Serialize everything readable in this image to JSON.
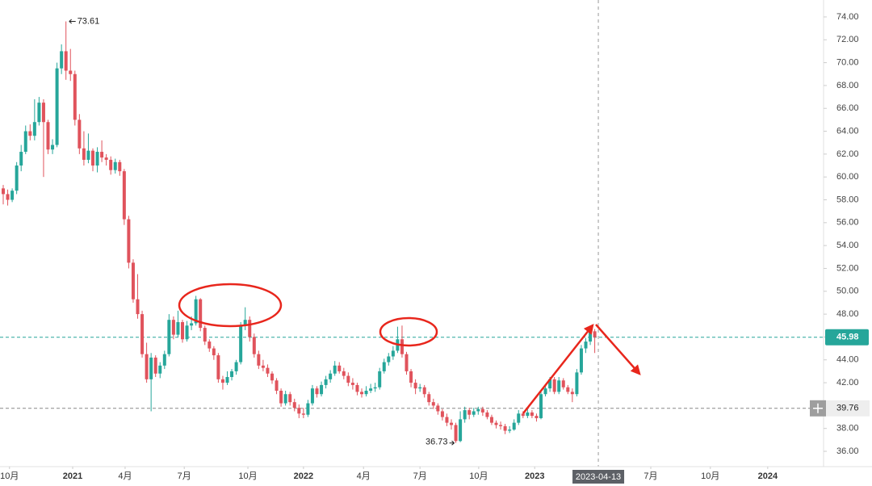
{
  "chart_data": {
    "type": "candlestick",
    "up_color": "#26a69a",
    "down_color": "#e0535c",
    "xlim": [
      -0.72,
      183.06
    ],
    "ylim": [
      34.66,
      75.48
    ],
    "yticks": [
      {
        "value": 36,
        "label": "36.00"
      },
      {
        "value": 38,
        "label": "38.00"
      },
      {
        "value": 40,
        "label": "40.00"
      },
      {
        "value": 42,
        "label": "42.00"
      },
      {
        "value": 44,
        "label": "44.00"
      },
      {
        "value": 46,
        "label": "46.00"
      },
      {
        "value": 48,
        "label": "48.00"
      },
      {
        "value": 50,
        "label": "50.00"
      },
      {
        "value": 52,
        "label": "52.00"
      },
      {
        "value": 54,
        "label": "54.00"
      },
      {
        "value": 56,
        "label": "56.00"
      },
      {
        "value": 58,
        "label": "58.00"
      },
      {
        "value": 60,
        "label": "60.00"
      },
      {
        "value": 62,
        "label": "62.00"
      },
      {
        "value": 64,
        "label": "64.00"
      },
      {
        "value": 66,
        "label": "66.00"
      },
      {
        "value": 68,
        "label": "68.00"
      },
      {
        "value": 70,
        "label": "70.00"
      },
      {
        "value": 72,
        "label": "72.00"
      },
      {
        "value": 74,
        "label": "74.00"
      }
    ],
    "xticks": [
      {
        "value": 1.4,
        "label": "10月"
      },
      {
        "value": 15.5,
        "label": "2021"
      },
      {
        "value": 27.2,
        "label": "4月"
      },
      {
        "value": 40.4,
        "label": "7月"
      },
      {
        "value": 54.6,
        "label": "10月"
      },
      {
        "value": 67,
        "label": "2022"
      },
      {
        "value": 80.4,
        "label": "4月"
      },
      {
        "value": 93,
        "label": "7月"
      },
      {
        "value": 106.1,
        "label": "10月"
      },
      {
        "value": 118.6,
        "label": "2023"
      },
      {
        "value": 144.5,
        "label": "7月"
      },
      {
        "value": 157.8,
        "label": "10月"
      },
      {
        "value": 170.6,
        "label": "2024"
      }
    ],
    "crosshair": {
      "value": 132.8,
      "label": "2023-04-13"
    },
    "price_lines": [
      {
        "value": 45.98,
        "color": "#26a69a"
      },
      {
        "value": 39.76,
        "color": "#888888"
      }
    ],
    "candles": [
      [
        59.0,
        59.3,
        57.6,
        58.5
      ],
      [
        58.5,
        58.9,
        57.5,
        58.0
      ],
      [
        58.0,
        59.0,
        57.8,
        58.8
      ],
      [
        58.8,
        61.3,
        58.5,
        61.0
      ],
      [
        61.0,
        62.8,
        60.5,
        62.2
      ],
      [
        62.2,
        64.5,
        62.0,
        64.0
      ],
      [
        64.0,
        64.6,
        63.2,
        63.6
      ],
      [
        63.6,
        66.8,
        63.2,
        64.8
      ],
      [
        64.8,
        67.0,
        64.5,
        66.5
      ],
      [
        66.5,
        66.8,
        60.0,
        64.8
      ],
      [
        64.8,
        65.0,
        62.0,
        62.4
      ],
      [
        62.4,
        63.3,
        62.0,
        62.8
      ],
      [
        62.8,
        70.0,
        62.6,
        69.5
      ],
      [
        69.5,
        71.6,
        69.0,
        71.0
      ],
      [
        71.0,
        73.61,
        68.5,
        69.3
      ],
      [
        69.3,
        71.2,
        68.4,
        69.0
      ],
      [
        69.0,
        69.3,
        64.5,
        65.0
      ],
      [
        65.0,
        65.5,
        62.0,
        62.5
      ],
      [
        62.5,
        64.0,
        61.0,
        61.5
      ],
      [
        61.5,
        63.8,
        61.2,
        62.3
      ],
      [
        62.3,
        62.5,
        60.5,
        61.0
      ],
      [
        61.0,
        62.6,
        60.4,
        62.2
      ],
      [
        62.2,
        63.2,
        61.3,
        61.7
      ],
      [
        61.7,
        62.0,
        61.0,
        61.5
      ],
      [
        61.5,
        61.8,
        60.2,
        60.6
      ],
      [
        60.6,
        61.6,
        60.3,
        61.3
      ],
      [
        61.3,
        61.5,
        60.1,
        60.5
      ],
      [
        60.5,
        60.7,
        55.8,
        56.3
      ],
      [
        56.3,
        56.6,
        52.0,
        52.5
      ],
      [
        52.5,
        52.8,
        49.0,
        49.3
      ],
      [
        49.3,
        51.5,
        47.6,
        48.0
      ],
      [
        48.0,
        48.3,
        44.2,
        44.5
      ],
      [
        44.5,
        45.5,
        42.0,
        42.3
      ],
      [
        42.3,
        44.6,
        39.5,
        44.2
      ],
      [
        44.2,
        44.4,
        42.5,
        42.8
      ],
      [
        42.8,
        43.8,
        42.4,
        43.5
      ],
      [
        43.5,
        44.8,
        43.2,
        44.5
      ],
      [
        44.5,
        48.0,
        44.3,
        47.5
      ],
      [
        47.5,
        47.8,
        45.8,
        46.2
      ],
      [
        46.2,
        48.3,
        46.0,
        47.3
      ],
      [
        47.3,
        47.5,
        45.5,
        45.8
      ],
      [
        45.8,
        47.4,
        45.6,
        47.0
      ],
      [
        47.0,
        47.8,
        46.6,
        47.2
      ],
      [
        47.2,
        49.6,
        47.0,
        49.3
      ],
      [
        49.3,
        49.4,
        46.5,
        46.8
      ],
      [
        46.8,
        47.0,
        45.3,
        45.6
      ],
      [
        45.6,
        45.8,
        44.7,
        45.0
      ],
      [
        45.0,
        45.2,
        44.0,
        44.4
      ],
      [
        44.4,
        44.6,
        42.0,
        42.3
      ],
      [
        42.3,
        42.6,
        41.4,
        42.0
      ],
      [
        42.0,
        43.0,
        41.8,
        42.5
      ],
      [
        42.5,
        43.2,
        42.2,
        43.0
      ],
      [
        43.0,
        44.0,
        42.7,
        43.8
      ],
      [
        43.8,
        47.3,
        43.6,
        47.0
      ],
      [
        47.0,
        48.6,
        46.6,
        47.5
      ],
      [
        47.5,
        47.8,
        45.6,
        46.0
      ],
      [
        46.0,
        46.3,
        44.2,
        44.5
      ],
      [
        44.5,
        44.8,
        43.2,
        43.5
      ],
      [
        43.5,
        44.0,
        43.0,
        43.3
      ],
      [
        43.3,
        43.6,
        42.5,
        42.8
      ],
      [
        42.8,
        43.0,
        41.9,
        42.2
      ],
      [
        42.2,
        42.4,
        41.0,
        41.3
      ],
      [
        41.3,
        41.5,
        39.9,
        40.2
      ],
      [
        40.2,
        41.3,
        40.0,
        41.0
      ],
      [
        41.0,
        41.2,
        40.0,
        40.3
      ],
      [
        40.3,
        40.6,
        39.5,
        39.8
      ],
      [
        39.8,
        40.1,
        38.9,
        39.3
      ],
      [
        39.3,
        39.8,
        38.9,
        39.2
      ],
      [
        39.2,
        40.5,
        39.0,
        40.2
      ],
      [
        40.2,
        41.8,
        40.0,
        41.5
      ],
      [
        41.5,
        41.7,
        40.7,
        41.0
      ],
      [
        41.0,
        42.1,
        40.8,
        41.8
      ],
      [
        41.8,
        42.6,
        41.5,
        42.3
      ],
      [
        42.3,
        43.1,
        42.0,
        42.8
      ],
      [
        42.8,
        43.9,
        42.6,
        43.5
      ],
      [
        43.5,
        43.8,
        42.8,
        43.0
      ],
      [
        43.0,
        43.3,
        42.3,
        42.6
      ],
      [
        42.6,
        42.9,
        41.7,
        42.0
      ],
      [
        42.0,
        42.4,
        41.4,
        41.8
      ],
      [
        41.8,
        42.0,
        40.9,
        41.2
      ],
      [
        41.2,
        41.5,
        40.7,
        41.0
      ],
      [
        41.0,
        41.7,
        40.8,
        41.3
      ],
      [
        41.3,
        41.9,
        41.1,
        41.5
      ],
      [
        41.5,
        42.0,
        41.2,
        41.6
      ],
      [
        41.6,
        43.3,
        41.4,
        43.0
      ],
      [
        43.0,
        44.1,
        42.8,
        43.8
      ],
      [
        43.8,
        44.6,
        43.5,
        44.3
      ],
      [
        44.3,
        45.2,
        44.0,
        44.8
      ],
      [
        44.8,
        46.9,
        44.6,
        45.8
      ],
      [
        45.8,
        47.0,
        44.2,
        44.5
      ],
      [
        44.5,
        44.7,
        42.7,
        43.0
      ],
      [
        43.0,
        43.2,
        41.6,
        42.0
      ],
      [
        42.0,
        42.3,
        41.0,
        41.5
      ],
      [
        41.5,
        41.9,
        41.2,
        41.6
      ],
      [
        41.6,
        41.8,
        40.7,
        41.0
      ],
      [
        41.0,
        41.2,
        40.0,
        40.3
      ],
      [
        40.3,
        40.6,
        39.7,
        40.0
      ],
      [
        40.0,
        40.2,
        39.2,
        39.5
      ],
      [
        39.5,
        39.7,
        38.7,
        39.0
      ],
      [
        39.0,
        39.3,
        38.2,
        38.5
      ],
      [
        38.5,
        38.8,
        37.9,
        38.3
      ],
      [
        38.3,
        38.5,
        36.73,
        36.9
      ],
      [
        36.9,
        39.5,
        36.8,
        38.8
      ],
      [
        38.8,
        39.9,
        38.5,
        39.6
      ],
      [
        39.6,
        39.8,
        38.8,
        39.2
      ],
      [
        39.2,
        39.8,
        39.0,
        39.5
      ],
      [
        39.5,
        39.9,
        39.2,
        39.7
      ],
      [
        39.7,
        39.9,
        39.1,
        39.4
      ],
      [
        39.4,
        39.6,
        38.8,
        39.0
      ],
      [
        39.0,
        39.2,
        38.3,
        38.5
      ],
      [
        38.5,
        38.7,
        38.0,
        38.3
      ],
      [
        38.3,
        38.6,
        37.9,
        38.2
      ],
      [
        38.2,
        38.4,
        37.5,
        37.8
      ],
      [
        37.8,
        38.2,
        37.6,
        37.9
      ],
      [
        37.9,
        38.8,
        37.8,
        38.5
      ],
      [
        38.5,
        39.6,
        38.3,
        39.3
      ],
      [
        39.3,
        39.5,
        38.9,
        39.1
      ],
      [
        39.1,
        39.7,
        38.9,
        39.4
      ],
      [
        39.4,
        39.6,
        38.9,
        39.1
      ],
      [
        39.1,
        39.3,
        38.6,
        38.9
      ],
      [
        38.9,
        41.3,
        38.8,
        41.0
      ],
      [
        41.0,
        41.8,
        40.8,
        41.5
      ],
      [
        41.5,
        42.5,
        41.2,
        42.3
      ],
      [
        42.3,
        42.5,
        41.0,
        41.2
      ],
      [
        41.2,
        42.5,
        41.0,
        42.2
      ],
      [
        42.2,
        42.4,
        41.4,
        41.6
      ],
      [
        41.6,
        41.8,
        41.0,
        41.2
      ],
      [
        41.2,
        41.5,
        40.3,
        41.0
      ],
      [
        41.0,
        43.2,
        40.8,
        42.9
      ],
      [
        42.9,
        45.3,
        42.7,
        45.0
      ],
      [
        45.0,
        45.9,
        44.6,
        45.6
      ],
      [
        45.6,
        46.8,
        45.3,
        46.5
      ],
      [
        46.5,
        46.7,
        44.6,
        45.98
      ]
    ]
  }
}
